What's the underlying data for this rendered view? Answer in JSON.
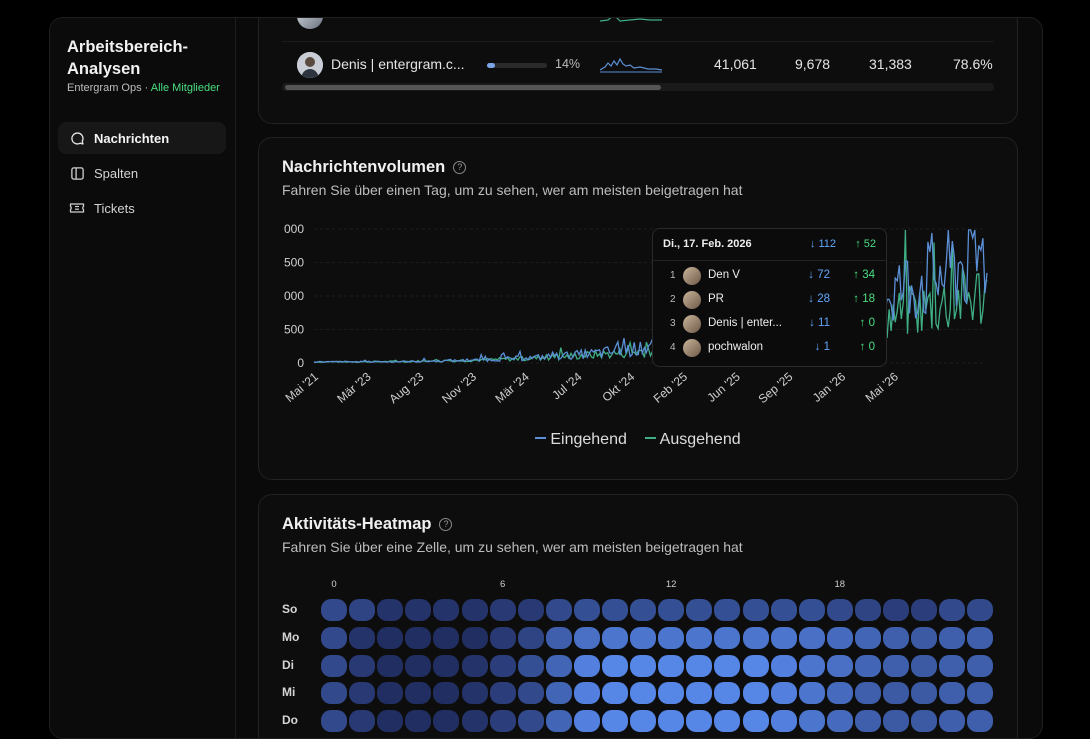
{
  "sidebar": {
    "title": "Arbeitsbereich-Analysen",
    "org": "Entergram Ops",
    "separator": " · ",
    "filter": "Alle Mitglieder",
    "items": [
      {
        "label": "Nachrichten",
        "icon": "message-icon",
        "active": true
      },
      {
        "label": "Spalten",
        "icon": "columns-icon",
        "active": false
      },
      {
        "label": "Tickets",
        "icon": "ticket-icon",
        "active": false
      }
    ]
  },
  "members_table": {
    "rows": [
      {
        "name": "Denis | entergram.c...",
        "share": "14%",
        "share_value": 0.14,
        "v1": "41,061",
        "v2": "9,678",
        "v3": "31,383",
        "v4": "78.6%"
      }
    ]
  },
  "volume": {
    "title": "Nachrichtenvolumen",
    "subtitle": "Fahren Sie über einen Tag, um zu sehen, wer am meisten beigetragen hat",
    "legend": {
      "incoming": "Eingehend",
      "outgoing": "Ausgehend"
    },
    "tooltip": {
      "date": "Di., 17. Feb. 2026",
      "total_in": "112",
      "total_out": "52",
      "rows": [
        {
          "rank": "1",
          "name": "Den V",
          "in": "72",
          "out": "34"
        },
        {
          "rank": "2",
          "name": "PR",
          "in": "28",
          "out": "18"
        },
        {
          "rank": "3",
          "name": "Denis | enter...",
          "in": "11",
          "out": "0"
        },
        {
          "rank": "4",
          "name": "pochwalon",
          "in": "1",
          "out": "0"
        }
      ]
    }
  },
  "chart_data": {
    "type": "line",
    "y_tick_labels": [
      "000",
      "500",
      "000",
      "500",
      "0"
    ],
    "x_tick_labels": [
      "Mai '21",
      "Mär '23",
      "Aug '23",
      "Nov '23",
      "Mär '24",
      "Jul '24",
      "Okt '24",
      "Feb '25",
      "Jun '25",
      "Sep '25",
      "Jan '26",
      "Mai '26"
    ],
    "series": [
      {
        "name": "Eingehend",
        "color": "#5b8fd6"
      },
      {
        "name": "Ausgehend",
        "color": "#3fae84"
      }
    ]
  },
  "heatmap": {
    "title": "Aktivitäts-Heatmap",
    "subtitle": "Fahren Sie über eine Zelle, um zu sehen, wer am meisten beigetragen hat",
    "hour_labels": [
      {
        "hour": 0,
        "label": "0"
      },
      {
        "hour": 6,
        "label": "6"
      },
      {
        "hour": 12,
        "label": "12"
      },
      {
        "hour": 18,
        "label": "18"
      }
    ],
    "days": [
      "So",
      "Mo",
      "Di",
      "Mi",
      "Do"
    ],
    "intensity": [
      [
        0.3,
        0.25,
        0.1,
        0.1,
        0.1,
        0.1,
        0.15,
        0.15,
        0.3,
        0.35,
        0.35,
        0.35,
        0.35,
        0.35,
        0.35,
        0.35,
        0.35,
        0.35,
        0.3,
        0.25,
        0.2,
        0.2,
        0.3,
        0.3
      ],
      [
        0.3,
        0.1,
        0.05,
        0.05,
        0.05,
        0.05,
        0.15,
        0.25,
        0.5,
        0.65,
        0.7,
        0.7,
        0.7,
        0.7,
        0.7,
        0.7,
        0.7,
        0.65,
        0.6,
        0.55,
        0.5,
        0.45,
        0.5,
        0.5
      ],
      [
        0.3,
        0.15,
        0.05,
        0.05,
        0.05,
        0.1,
        0.2,
        0.35,
        0.55,
        0.8,
        0.85,
        0.85,
        0.85,
        0.85,
        0.85,
        0.85,
        0.8,
        0.7,
        0.65,
        0.55,
        0.5,
        0.45,
        0.5,
        0.5
      ],
      [
        0.3,
        0.15,
        0.05,
        0.05,
        0.05,
        0.1,
        0.2,
        0.3,
        0.55,
        0.8,
        0.85,
        0.85,
        0.85,
        0.85,
        0.85,
        0.85,
        0.8,
        0.7,
        0.6,
        0.5,
        0.45,
        0.45,
        0.5,
        0.5
      ],
      [
        0.3,
        0.15,
        0.05,
        0.05,
        0.05,
        0.1,
        0.2,
        0.3,
        0.55,
        0.8,
        0.85,
        0.85,
        0.85,
        0.85,
        0.85,
        0.85,
        0.8,
        0.7,
        0.6,
        0.5,
        0.45,
        0.45,
        0.5,
        0.5
      ]
    ]
  }
}
